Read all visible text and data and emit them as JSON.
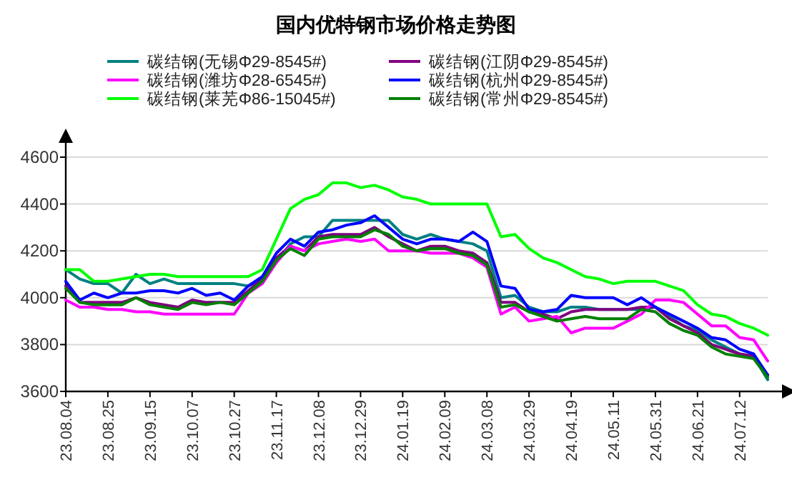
{
  "chart_data": {
    "type": "line",
    "title": "国内优特钢市场价格走势图",
    "categories": [
      "23.08.04",
      null,
      null,
      "23.08.25",
      null,
      null,
      "23.09.15",
      null,
      null,
      "23.10.07",
      null,
      null,
      "23.10.27",
      null,
      null,
      "23.11.17",
      null,
      null,
      "23.12.08",
      null,
      null,
      "23.12.29",
      null,
      null,
      "24.01.19",
      null,
      null,
      "24.02.09",
      null,
      null,
      "24.03.08",
      null,
      null,
      "24.03.29",
      null,
      null,
      "24.04.19",
      null,
      null,
      "24.05.11",
      null,
      null,
      "24.05.31",
      null,
      null,
      "24.06.21",
      null,
      null,
      "24.07.12",
      null,
      null
    ],
    "series": [
      {
        "name": "碳结钢(无锡Φ29-8545#)",
        "color": "#008080",
        "values": [
          4120,
          4080,
          4060,
          4060,
          4020,
          4100,
          4060,
          4080,
          4060,
          4060,
          4060,
          4060,
          4060,
          4050,
          4080,
          4150,
          4230,
          4260,
          4260,
          4330,
          4330,
          4330,
          4330,
          4330,
          4270,
          4250,
          4270,
          4250,
          4240,
          4230,
          4200,
          4000,
          4010,
          3960,
          3940,
          3940,
          3960,
          3960,
          3950,
          3950,
          3950,
          3950,
          3960,
          3920,
          3880,
          3860,
          3820,
          3790,
          3760,
          3750,
          3650
        ]
      },
      {
        "name": "碳结钢(江阴Φ29-8545#)",
        "color": "#800080",
        "values": [
          4050,
          3980,
          3980,
          3980,
          3980,
          4000,
          3980,
          3970,
          3960,
          3990,
          3980,
          3980,
          3980,
          4030,
          4080,
          4170,
          4220,
          4200,
          4260,
          4270,
          4270,
          4270,
          4300,
          4260,
          4230,
          4200,
          4220,
          4220,
          4200,
          4190,
          4150,
          3980,
          3980,
          3940,
          3930,
          3910,
          3940,
          3950,
          3950,
          3950,
          3950,
          3960,
          3960,
          3910,
          3880,
          3850,
          3800,
          3780,
          3760,
          3750,
          3670
        ]
      },
      {
        "name": "碳结钢(潍坊Φ28-6545#)",
        "color": "#ff00ff",
        "values": [
          3990,
          3960,
          3960,
          3950,
          3950,
          3940,
          3940,
          3930,
          3930,
          3930,
          3930,
          3930,
          3930,
          4020,
          4060,
          4150,
          4220,
          4200,
          4230,
          4240,
          4250,
          4240,
          4250,
          4200,
          4200,
          4200,
          4190,
          4190,
          4190,
          4170,
          4130,
          3930,
          3960,
          3900,
          3910,
          3920,
          3850,
          3870,
          3870,
          3870,
          3900,
          3930,
          3990,
          3990,
          3980,
          3930,
          3880,
          3880,
          3830,
          3820,
          3730
        ]
      },
      {
        "name": "碳结钢(杭州Φ29-8545#)",
        "color": "#0000ff",
        "values": [
          4070,
          3990,
          4020,
          4000,
          4020,
          4020,
          4030,
          4030,
          4020,
          4040,
          4010,
          4020,
          3990,
          4050,
          4090,
          4190,
          4250,
          4220,
          4280,
          4290,
          4310,
          4320,
          4350,
          4300,
          4250,
          4230,
          4250,
          4250,
          4240,
          4280,
          4240,
          4050,
          4040,
          3950,
          3940,
          3950,
          4010,
          4000,
          4000,
          4000,
          3970,
          4000,
          3960,
          3930,
          3900,
          3870,
          3830,
          3820,
          3780,
          3760,
          3670
        ]
      },
      {
        "name": "碳结钢(莱芜Φ86-15045#)",
        "color": "#00ff00",
        "values": [
          4120,
          4120,
          4070,
          4070,
          4080,
          4090,
          4100,
          4100,
          4090,
          4090,
          4090,
          4090,
          4090,
          4090,
          4120,
          4250,
          4380,
          4420,
          4440,
          4490,
          4490,
          4470,
          4480,
          4460,
          4430,
          4420,
          4400,
          4400,
          4400,
          4400,
          4400,
          4260,
          4270,
          4210,
          4170,
          4150,
          4120,
          4090,
          4080,
          4060,
          4070,
          4070,
          4070,
          4050,
          4030,
          3970,
          3930,
          3920,
          3890,
          3870,
          3840
        ]
      },
      {
        "name": "碳结钢(常州Φ29-8545#)",
        "color": "#008000",
        "values": [
          4040,
          3980,
          3970,
          3970,
          3970,
          4000,
          3970,
          3960,
          3950,
          3980,
          3970,
          3980,
          3970,
          4020,
          4070,
          4160,
          4210,
          4180,
          4250,
          4260,
          4260,
          4260,
          4290,
          4270,
          4220,
          4200,
          4210,
          4210,
          4190,
          4180,
          4140,
          3960,
          3970,
          3940,
          3920,
          3900,
          3910,
          3920,
          3910,
          3910,
          3910,
          3950,
          3940,
          3890,
          3860,
          3840,
          3790,
          3760,
          3750,
          3740,
          3660
        ]
      }
    ],
    "ylim": [
      3600,
      4600
    ],
    "yticks": [
      3600,
      3800,
      4000,
      4200,
      4400,
      4600
    ],
    "grid": "y",
    "legend": "top",
    "marker": "none",
    "line_style": "solid"
  }
}
